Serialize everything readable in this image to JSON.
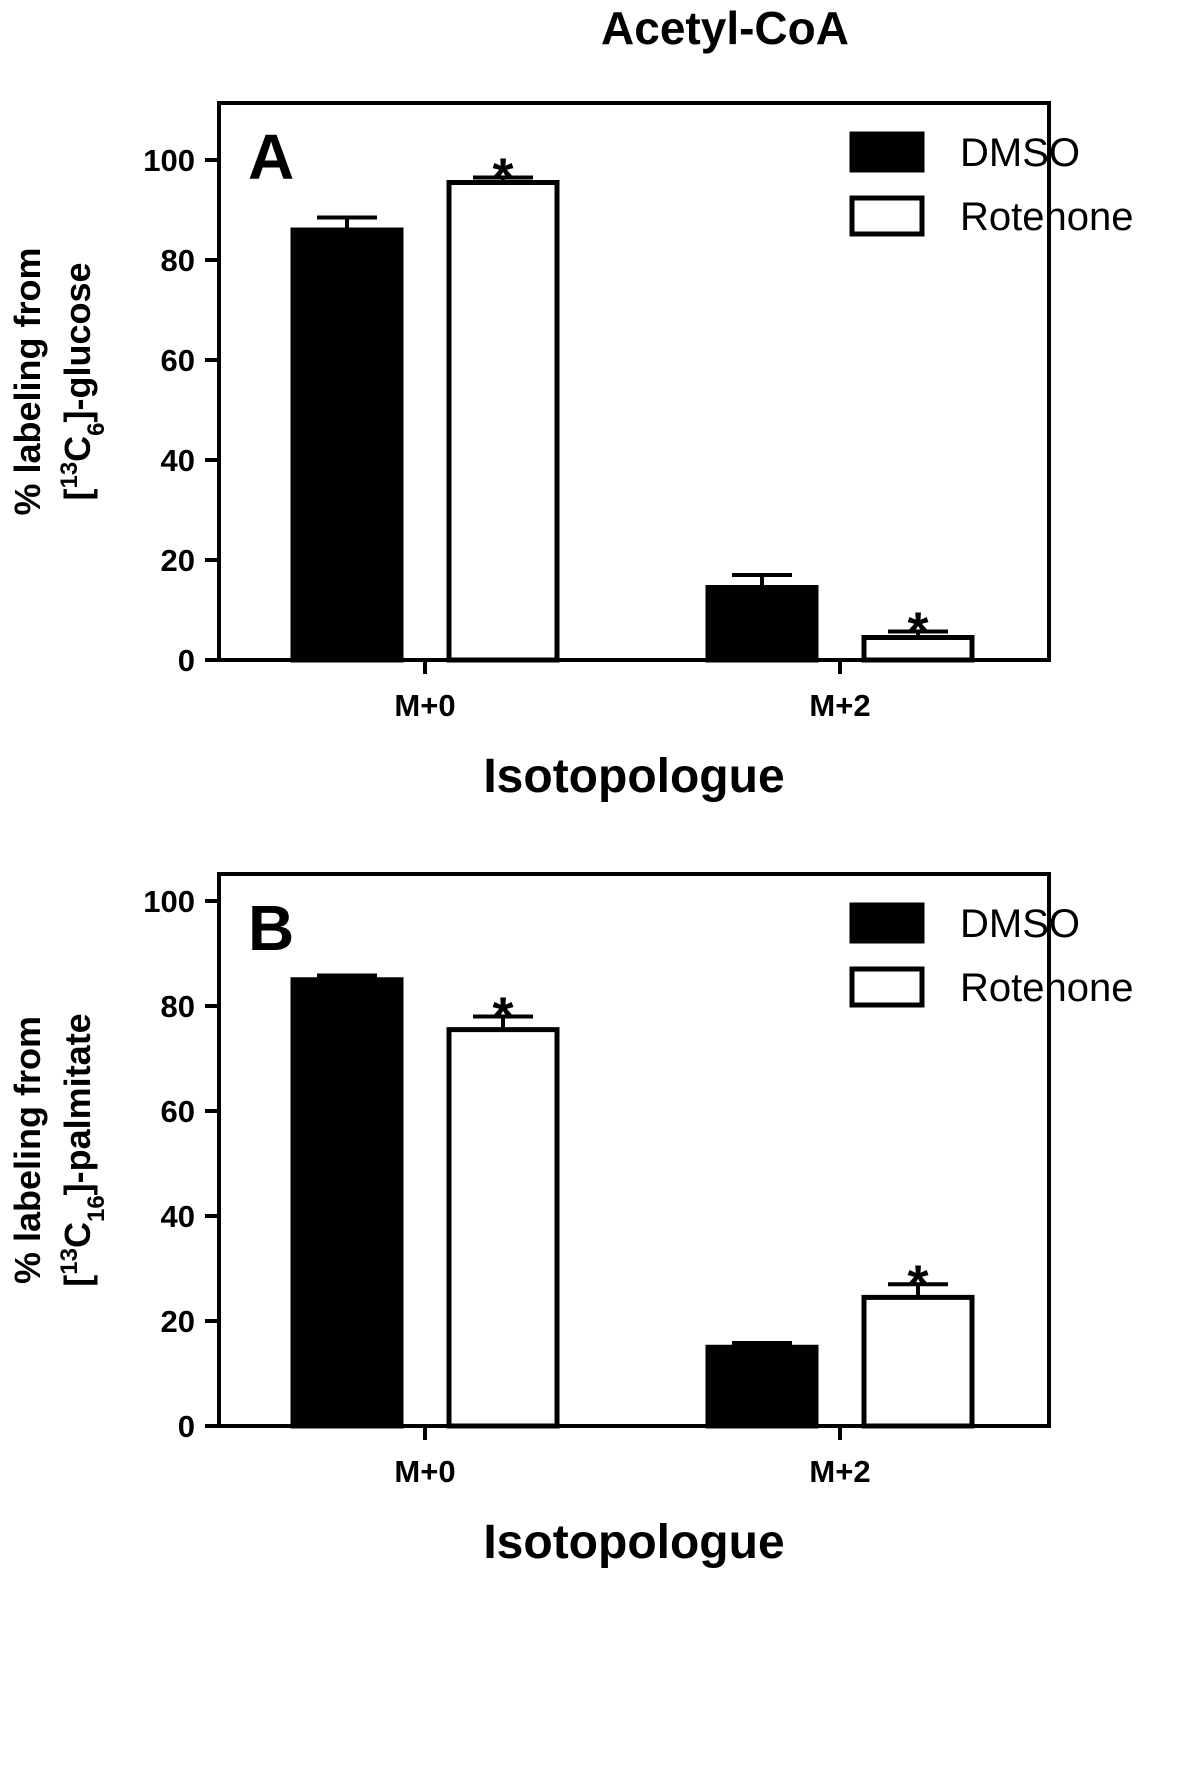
{
  "figure_title": "Acetyl-CoA",
  "legend_labels": [
    "DMSO",
    "Rotenone"
  ],
  "colors": {
    "DMSO": "#000000",
    "Rotenone": "#ffffff",
    "stroke": "#000000"
  },
  "chart_data": [
    {
      "type": "bar",
      "panel": "A",
      "categories": [
        "M+0",
        "M+2"
      ],
      "series": [
        {
          "name": "DMSO",
          "values": [
            86,
            14.5
          ],
          "errors": [
            2.5,
            2.5
          ],
          "significant": [
            false,
            false
          ]
        },
        {
          "name": "Rotenone",
          "values": [
            95.5,
            4.5
          ],
          "errors": [
            1.0,
            1.2
          ],
          "significant": [
            true,
            true
          ]
        }
      ],
      "xlabel": "Isotopologue",
      "ylabel_line1": "% labeling from",
      "ylabel_line2": "[13C6]-glucose",
      "ylabel_parts": {
        "open": "[",
        "sup": "13",
        "base": "C",
        "sub": "6",
        "rest": "]-glucose"
      },
      "yticks": [
        0,
        20,
        40,
        60,
        80,
        100
      ],
      "ylim": [
        0,
        110
      ],
      "legend": "top-right"
    },
    {
      "type": "bar",
      "panel": "B",
      "categories": [
        "M+0",
        "M+2"
      ],
      "series": [
        {
          "name": "DMSO",
          "values": [
            85,
            15
          ],
          "errors": [
            0.8,
            0.8
          ],
          "significant": [
            false,
            false
          ]
        },
        {
          "name": "Rotenone",
          "values": [
            75.5,
            24.5
          ],
          "errors": [
            2.5,
            2.5
          ],
          "significant": [
            true,
            true
          ]
        }
      ],
      "xlabel": "Isotopologue",
      "ylabel_line1": "% labeling from",
      "ylabel_line2": "[13C16]-palmitate",
      "ylabel_parts": {
        "open": "[",
        "sup": "13",
        "base": "C",
        "sub": "16",
        "rest": "]-palmitate"
      },
      "yticks": [
        0,
        20,
        40,
        60,
        80,
        100
      ],
      "ylim": [
        0,
        100
      ],
      "legend": "top-right"
    }
  ]
}
